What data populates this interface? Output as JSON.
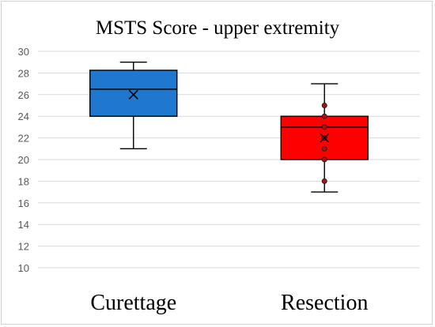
{
  "chart_data": {
    "type": "boxplot",
    "title": "MSTS Score - upper extremity",
    "xlabel": "",
    "ylabel": "",
    "ylim": [
      10,
      30
    ],
    "yticks": [
      10,
      12,
      14,
      16,
      18,
      20,
      22,
      24,
      26,
      28,
      30
    ],
    "grid": true,
    "legend": "none",
    "categories": [
      "Curettage",
      "Resection"
    ],
    "series": [
      {
        "category": "Curettage",
        "color": "#1f77d0",
        "whisker_low": 21,
        "q1": 24,
        "median": 26.5,
        "q3": 28.25,
        "whisker_high": 29,
        "mean": 26,
        "points": []
      },
      {
        "category": "Resection",
        "color": "#ff0000",
        "whisker_low": 17,
        "q1": 20,
        "median": 23,
        "q3": 24,
        "whisker_high": 27,
        "mean": 22,
        "points": [
          25,
          24,
          23,
          22,
          21,
          20,
          18
        ]
      }
    ]
  }
}
